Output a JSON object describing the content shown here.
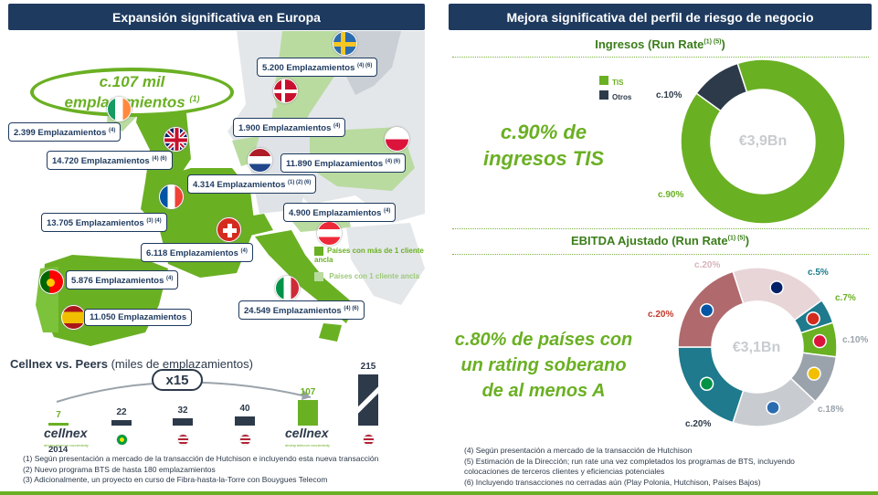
{
  "left": {
    "header": "Expansión significativa en Europa",
    "oval": {
      "line1": "c.107 mil",
      "line2": "emplazamientos",
      "sup": "(1)"
    },
    "boxes": [
      {
        "id": "sweden",
        "text": "5.200 Emplazamientos",
        "sup": "(4) (6)"
      },
      {
        "id": "ireland",
        "text": "2.399 Emplazamientos",
        "sup": "(4)"
      },
      {
        "id": "denmark",
        "text": "1.900 Emplazamientos",
        "sup": "(4)"
      },
      {
        "id": "uk",
        "text": "14.720 Emplazamientos",
        "sup": "(4) (6)"
      },
      {
        "id": "poland",
        "text": "11.890 Emplazamientos",
        "sup": "(4) (6)"
      },
      {
        "id": "netherlands",
        "text": "4.314 Emplazamientos",
        "sup": "(1) (2) (6)"
      },
      {
        "id": "france",
        "text": "13.705 Emplazamientos",
        "sup": "(3) (4)"
      },
      {
        "id": "austria",
        "text": "4.900 Emplazamientos",
        "sup": "(4)"
      },
      {
        "id": "switzerland",
        "text": "6.118 Emplazamientos",
        "sup": "(4)"
      },
      {
        "id": "portugal",
        "text": "5.876 Emplazamientos",
        "sup": "(4)"
      },
      {
        "id": "spain",
        "text": "11.050 Emplazamientos",
        "sup": ""
      },
      {
        "id": "italy",
        "text": "24.549 Emplazamientos",
        "sup": "(4) (6)"
      }
    ],
    "legend": {
      "multi": "Países con más de 1 cliente ancla",
      "single": "Países con 1 cliente ancla",
      "multi_color": "#6ab023",
      "single_color": "#b9dba0"
    },
    "peers": {
      "title_bold": "Cellnex vs. Peers",
      "title_rest": " (miles de emplazamientos)",
      "multiplier": "x15",
      "year": "2014",
      "logo_text": "cellnex",
      "logo_tagline": "driving telecom connectivity",
      "bars": [
        {
          "value": "7",
          "color": "#6ab023",
          "logo": "cellnex"
        },
        {
          "value": "22",
          "color": "#2d3a4a",
          "logo": "flag-br"
        },
        {
          "value": "32",
          "color": "#2d3a4a",
          "logo": "flag-us"
        },
        {
          "value": "40",
          "color": "#2d3a4a",
          "logo": "flag-us"
        },
        {
          "value": "107",
          "color": "#6ab023",
          "logo": "cellnex"
        },
        {
          "value": "215",
          "color": "#2d3a4a",
          "logo": "flag-us"
        }
      ]
    },
    "footnotes": [
      "(1) Según presentación a mercado de la transacción de Hutchison e incluyendo esta nueva transacción",
      "(2) Nuevo programa BTS de hasta 180 emplazamientos",
      "(3) Adicionalmente, un proyecto en curso de Fibra-hasta-la-Torre con Bouygues Telecom"
    ]
  },
  "right": {
    "header": "Mejora significativa del perfil de riesgo de negocio",
    "ingresos": {
      "title": "Ingresos (Run Rate",
      "title_sup": "(1) (5)",
      "title_close": ")",
      "big_line1": "c.90% de",
      "big_line2": "ingresos TIS",
      "center": "€3,9Bn",
      "legend": [
        {
          "label": "TIS",
          "color": "#6ab023"
        },
        {
          "label": "Otros",
          "color": "#2d3a4a"
        }
      ],
      "slices": [
        {
          "label": "c.90%",
          "value": 90,
          "color": "#6ab023"
        },
        {
          "label": "c.10%",
          "value": 10,
          "color": "#2d3a4a"
        }
      ]
    },
    "ebitda": {
      "title": "EBITDA Ajustado (Run Rate",
      "title_sup": "(1) (5)",
      "title_close": ")",
      "big_line1": "c.80% de países con",
      "big_line2": "un rating soberano",
      "big_line3": "de al menos A",
      "center": "€3,1Bn",
      "slices": [
        {
          "label": "c.20%",
          "value": 20,
          "color": "#e8d5d8",
          "flag": "uk"
        },
        {
          "label": "c.5%",
          "value": 5,
          "color": "#1e7a8c",
          "flag": "ch"
        },
        {
          "label": "c.7%",
          "value": 7,
          "color": "#6ab023",
          "flag": "pl"
        },
        {
          "label": "c.10%",
          "value": 10,
          "color": "#9aa3ab",
          "flag": "es"
        },
        {
          "label": "c.18%",
          "value": 18,
          "color": "#c8ccd0",
          "flag": "nordic"
        },
        {
          "label": "c.20%",
          "value": 20,
          "color": "#1e7a8c",
          "flag": "it"
        },
        {
          "label": "c.20%",
          "value": 20,
          "color": "#b0696d",
          "flag": "fr"
        }
      ]
    },
    "footnotes": [
      "(4) Según presentación a mercado de la transacción de Hutchison",
      "(5) Estimación de la Dirección; run rate una vez completados los programas de BTS, incluyendo colocaciones de terceros clientes y eficiencias potenciales",
      "(6) Incluyendo transacciones no cerradas aún (Play Polonia, Hutchison, Países Bajos)"
    ]
  }
}
